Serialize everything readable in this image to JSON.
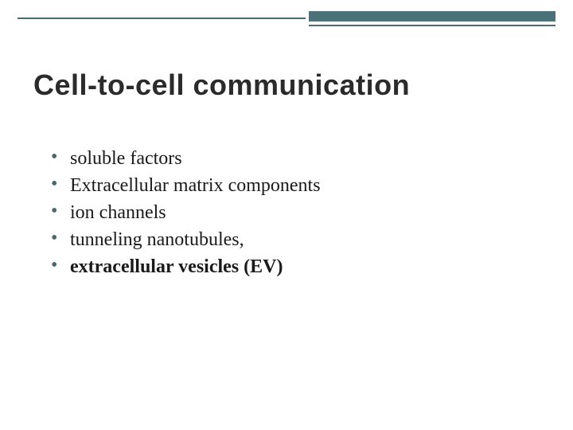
{
  "slide": {
    "title": "Cell-to-cell communication",
    "title_fontsize": 36,
    "title_color": "#2b2b2b",
    "title_font": "Verdana",
    "bullets": [
      {
        "text": "soluble factors",
        "bold": false
      },
      {
        "text": "Extracellular matrix components",
        "bold": false
      },
      {
        "text": "ion channels",
        "bold": false
      },
      {
        "text": "tunneling nanotubules,",
        "bold": false
      },
      {
        "text": "extracellular vesicles (EV)",
        "bold": true
      }
    ],
    "bullet_fontsize": 24,
    "bullet_color": "#1a1a1a",
    "bullet_marker_color": "#4b6868",
    "accent": {
      "thin_line_color": "#4b6b6f",
      "thick_bar_color": "#4b7278",
      "underline_color": "#4b6b6f"
    },
    "background_color": "#ffffff"
  }
}
